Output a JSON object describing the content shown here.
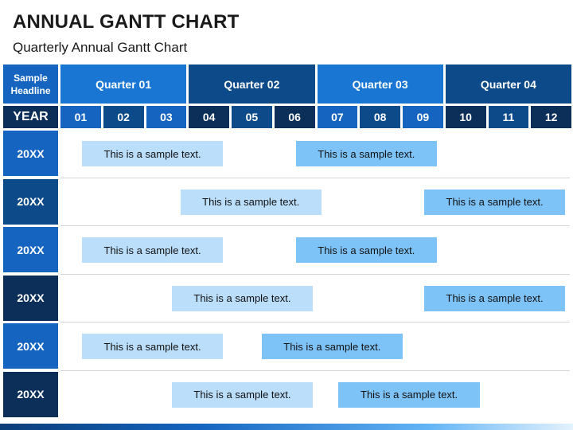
{
  "title": "ANNUAL GANTT CHART",
  "subtitle": "Quarterly Annual Gantt Chart",
  "header": {
    "headline": "Sample Headline",
    "year_label": "YEAR",
    "quarters": [
      "Quarter 01",
      "Quarter 02",
      "Quarter 03",
      "Quarter 04"
    ],
    "months": [
      "01",
      "02",
      "03",
      "04",
      "05",
      "06",
      "07",
      "08",
      "09",
      "10",
      "11",
      "12"
    ]
  },
  "rows": [
    {
      "label": "20XX",
      "bars": [
        {
          "text": "This is a sample text.",
          "start_month": 1.5,
          "end_month": 4.8,
          "style": "light"
        },
        {
          "text": "This is a sample text.",
          "start_month": 6.5,
          "end_month": 9.8,
          "style": "mid"
        }
      ]
    },
    {
      "label": "20XX",
      "bars": [
        {
          "text": "This is a sample text.",
          "start_month": 3.8,
          "end_month": 7.1,
          "style": "light"
        },
        {
          "text": "This is a sample text.",
          "start_month": 9.5,
          "end_month": 12.8,
          "style": "mid"
        }
      ]
    },
    {
      "label": "20XX",
      "bars": [
        {
          "text": "This is a sample text.",
          "start_month": 1.5,
          "end_month": 4.8,
          "style": "light"
        },
        {
          "text": "This is a sample text.",
          "start_month": 6.5,
          "end_month": 9.8,
          "style": "mid"
        }
      ]
    },
    {
      "label": "20XX",
      "bars": [
        {
          "text": "This is a sample text.",
          "start_month": 3.6,
          "end_month": 6.9,
          "style": "light"
        },
        {
          "text": "This is a sample text.",
          "start_month": 9.5,
          "end_month": 12.8,
          "style": "mid"
        }
      ]
    },
    {
      "label": "20XX",
      "bars": [
        {
          "text": "This is a sample text.",
          "start_month": 1.5,
          "end_month": 4.8,
          "style": "light"
        },
        {
          "text": "This is a sample text.",
          "start_month": 5.7,
          "end_month": 9.0,
          "style": "mid"
        }
      ]
    },
    {
      "label": "20XX",
      "bars": [
        {
          "text": "This is a sample text.",
          "start_month": 3.6,
          "end_month": 6.9,
          "style": "light"
        },
        {
          "text": "This is a sample text.",
          "start_month": 7.5,
          "end_month": 10.8,
          "style": "mid"
        }
      ]
    }
  ],
  "colors": {
    "headline_bg": "#1565c0",
    "year_bg": "#0b2f59",
    "quarter_bg": [
      "#1976d2",
      "#0d4a8a",
      "#1976d2",
      "#0d4a8a"
    ],
    "month_bg": [
      "#1565c0",
      "#0d4a8a",
      "#1565c0",
      "#0b2f59",
      "#0d4a8a",
      "#0b2f59",
      "#1565c0",
      "#0d4a8a",
      "#1565c0",
      "#0b2f59",
      "#0d4a8a",
      "#0b2f59"
    ],
    "row_label_bg": [
      "#1565c0",
      "#0d4a8a",
      "#1565c0",
      "#0b2f59",
      "#1565c0",
      "#0b2f59"
    ],
    "bar_light": "#bbdefb",
    "bar_mid": "#7ec3f8"
  }
}
